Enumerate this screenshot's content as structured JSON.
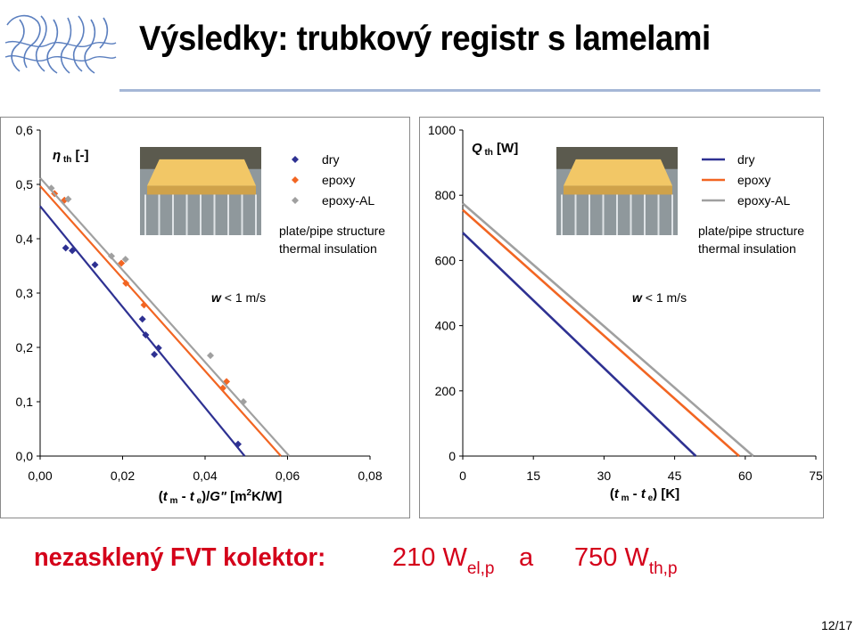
{
  "title": "Výsledky: trubkový registr s lamelami",
  "bottom": {
    "label": "nezasklený FVT kolektor:",
    "val1": "210 W",
    "val1_sub": "el,p",
    "conj": "a",
    "val2": "750 W",
    "val2_sub": "th,p"
  },
  "page_number": "12/17",
  "colors": {
    "dry": "#2e3192",
    "epoxy": "#f26522",
    "epoxy_al": "#a0a0a0",
    "title_red": "#d4001a",
    "rule": "#a5b7d6"
  },
  "chart_data": [
    {
      "type": "scatter",
      "ylabel_sym": "η",
      "ylabel_sub": "th",
      "ylabel_unit": "[-]",
      "xlabel": {
        "open": "(",
        "t1": "t",
        "s1": "m",
        "mid": " - ",
        "t2": "t",
        "s2": "e",
        "close": ")/",
        "g": "G\"",
        "unit_a": " [m",
        "sup": "2",
        "unit_b": "K/W]"
      },
      "xlim": [
        0,
        0.08
      ],
      "ylim": [
        0,
        0.6
      ],
      "xticks": [
        "0,00",
        "0,02",
        "0,04",
        "0,06",
        "0,08"
      ],
      "yticks": [
        "0,0",
        "0,1",
        "0,2",
        "0,3",
        "0,4",
        "0,5",
        "0,6"
      ],
      "annotation": "plate/pipe structure\nthermal insulation",
      "annotation_lines": [
        "plate/pipe structure",
        "thermal insulation"
      ],
      "condition": {
        "sym": "w",
        "text": " < 1 m/s"
      },
      "legend": [
        "dry",
        "epoxy",
        "epoxy-AL"
      ],
      "series": [
        {
          "name": "dry",
          "color": "#2e3192",
          "marker": "diamond",
          "points": [
            [
              0.0062,
              0.383
            ],
            [
              0.0078,
              0.378
            ],
            [
              0.0133,
              0.352
            ],
            [
              0.0248,
              0.252
            ],
            [
              0.0256,
              0.223
            ],
            [
              0.0277,
              0.187
            ],
            [
              0.0287,
              0.199
            ],
            [
              0.048,
              0.022
            ]
          ],
          "line": [
            [
              0,
              0.46
            ],
            [
              0.0496,
              0
            ]
          ]
        },
        {
          "name": "epoxy",
          "color": "#f26522",
          "marker": "diamond",
          "points": [
            [
              0.0035,
              0.483
            ],
            [
              0.0059,
              0.471
            ],
            [
              0.0197,
              0.355
            ],
            [
              0.0208,
              0.318
            ],
            [
              0.0252,
              0.278
            ],
            [
              0.0443,
              0.125
            ],
            [
              0.0452,
              0.137
            ]
          ],
          "line": [
            [
              0,
              0.497
            ],
            [
              0.0584,
              0
            ]
          ]
        },
        {
          "name": "epoxy-AL",
          "color": "#a0a0a0",
          "marker": "diamond",
          "points": [
            [
              0.0027,
              0.493
            ],
            [
              0.0068,
              0.473
            ],
            [
              0.0173,
              0.368
            ],
            [
              0.0207,
              0.362
            ],
            [
              0.0413,
              0.185
            ],
            [
              0.0493,
              0.1
            ]
          ],
          "line": [
            [
              0,
              0.512
            ],
            [
              0.0604,
              0
            ]
          ]
        }
      ]
    },
    {
      "type": "line",
      "ylabel_sym": "Q",
      "ylabel_sub": "th",
      "ylabel_unit": "[W]",
      "xlabel": {
        "open": "(",
        "t1": "t",
        "s1": "m",
        "mid": " - ",
        "t2": "t",
        "s2": "e",
        "close": ") [K]"
      },
      "xlim": [
        0,
        75
      ],
      "ylim": [
        0,
        1000
      ],
      "xticks": [
        "0",
        "15",
        "30",
        "45",
        "60",
        "75"
      ],
      "yticks": [
        "0",
        "200",
        "400",
        "600",
        "800",
        "1000"
      ],
      "annotation": "plate/pipe structure\nthermal insulation",
      "annotation_lines": [
        "plate/pipe structure",
        "thermal insulation"
      ],
      "condition": {
        "sym": "w",
        "text": " < 1 m/s"
      },
      "legend": [
        "dry",
        "epoxy",
        "epoxy-AL"
      ],
      "series": [
        {
          "name": "dry",
          "color": "#2e3192",
          "line": [
            [
              0,
              685
            ],
            [
              49.5,
              0
            ]
          ]
        },
        {
          "name": "epoxy",
          "color": "#f26522",
          "line": [
            [
              0,
              755
            ],
            [
              58.7,
              0
            ]
          ]
        },
        {
          "name": "epoxy-AL",
          "color": "#a0a0a0",
          "line": [
            [
              0,
              775
            ],
            [
              61.7,
              0
            ]
          ]
        }
      ]
    }
  ]
}
